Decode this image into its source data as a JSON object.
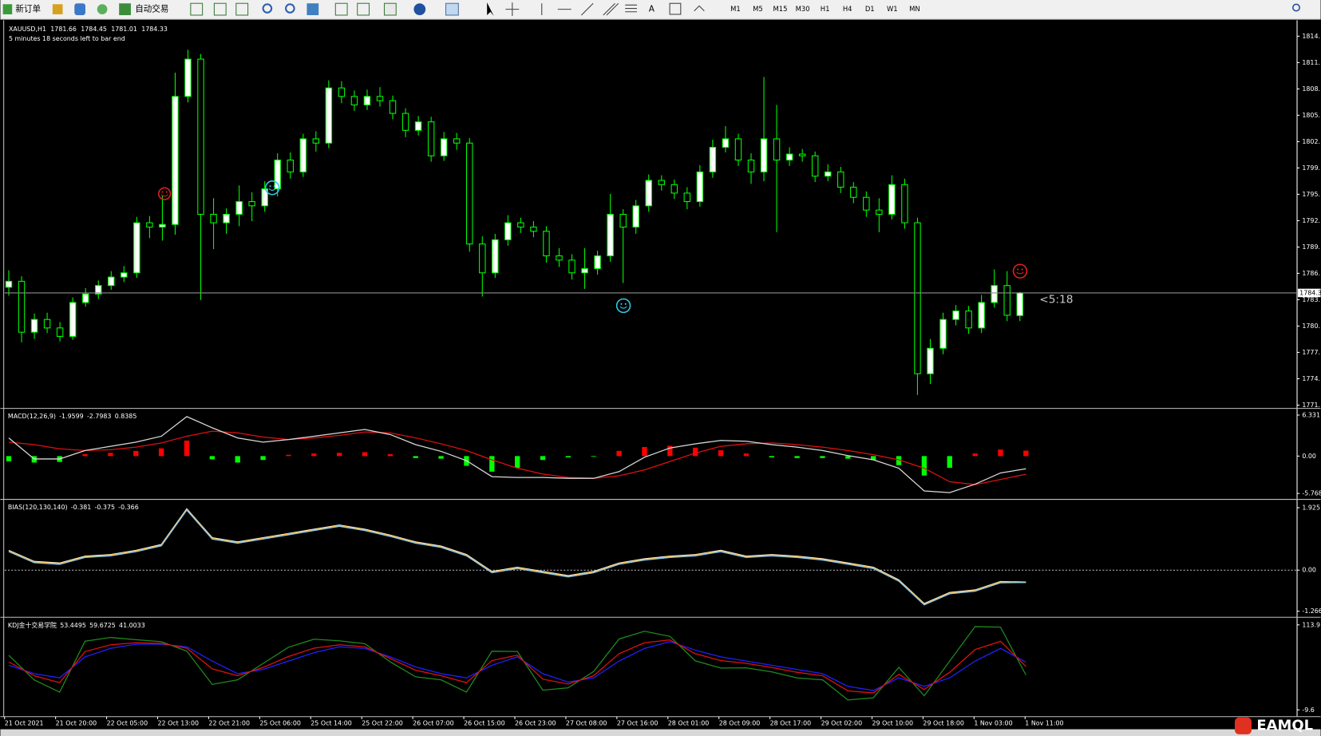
{
  "toolbar": {
    "buttons": [
      "新订单",
      "自动交易"
    ],
    "periods": [
      "M1",
      "M5",
      "M15",
      "M30",
      "H1",
      "H4",
      "D1",
      "W1",
      "MN"
    ]
  },
  "main": {
    "type": "candlestick",
    "symbol": "XAUUSD,H1",
    "countdown": "5 minutes 18 seconds left to bar end",
    "timer_label": "<5:18",
    "color": "#00ff00",
    "up_fill": "#ffffff",
    "down_fill": "#000000",
    "price_line_color": "#8c8c8c",
    "ylim": [
      1770.81,
      1816.19
    ],
    "yticks": [
      {
        "value": 1814.6,
        "label": "1814."
      },
      {
        "value": 1811.49,
        "label": "1811."
      },
      {
        "value": 1808.39,
        "label": "1808."
      },
      {
        "value": 1805.28,
        "label": "1805."
      },
      {
        "value": 1802.17,
        "label": "1802."
      },
      {
        "value": 1799.07,
        "label": "1799."
      },
      {
        "value": 1795.96,
        "label": "1795."
      },
      {
        "value": 1792.85,
        "label": "1792."
      },
      {
        "value": 1789.74,
        "label": "1789."
      },
      {
        "value": 1786.64,
        "label": "1786."
      },
      {
        "value": 1783.53,
        "label": "1783."
      },
      {
        "value": 1780.42,
        "label": "1780."
      },
      {
        "value": 1777.32,
        "label": "1777."
      },
      {
        "value": 1774.21,
        "label": "1774."
      },
      {
        "value": 1771.1,
        "label": "1771."
      }
    ],
    "candles": [
      [
        1785.0,
        1787.0,
        1784.0,
        1785.7
      ],
      [
        1785.7,
        1786.3,
        1778.5,
        1779.7
      ],
      [
        1779.7,
        1781.9,
        1778.9,
        1781.2
      ],
      [
        1781.2,
        1782.0,
        1779.6,
        1780.2
      ],
      [
        1780.2,
        1780.9,
        1778.6,
        1779.2
      ],
      [
        1779.2,
        1783.8,
        1778.8,
        1783.2
      ],
      [
        1783.2,
        1784.9,
        1782.7,
        1784.2
      ],
      [
        1784.2,
        1785.8,
        1783.6,
        1785.2
      ],
      [
        1785.2,
        1786.9,
        1784.7,
        1786.2
      ],
      [
        1786.2,
        1787.5,
        1785.6,
        1786.7
      ],
      [
        1786.7,
        1793.3,
        1786.1,
        1792.6
      ],
      [
        1792.6,
        1793.4,
        1790.8,
        1792.1
      ],
      [
        1792.1,
        1795.8,
        1790.5,
        1792.4
      ],
      [
        1792.4,
        1810.3,
        1791.2,
        1807.5
      ],
      [
        1807.5,
        1813.0,
        1806.8,
        1811.9
      ],
      [
        1811.9,
        1812.5,
        1783.5,
        1793.6
      ],
      [
        1793.6,
        1795.5,
        1789.5,
        1792.6
      ],
      [
        1792.6,
        1794.3,
        1791.3,
        1793.6
      ],
      [
        1793.6,
        1797.0,
        1792.2,
        1795.1
      ],
      [
        1795.1,
        1796.2,
        1792.8,
        1794.6
      ],
      [
        1794.6,
        1797.5,
        1793.9,
        1796.6
      ],
      [
        1796.6,
        1800.8,
        1795.7,
        1800.0
      ],
      [
        1800.0,
        1800.9,
        1797.8,
        1798.6
      ],
      [
        1798.6,
        1803.1,
        1798.0,
        1802.5
      ],
      [
        1802.5,
        1803.4,
        1801.0,
        1802.0
      ],
      [
        1802.0,
        1809.4,
        1801.4,
        1808.5
      ],
      [
        1808.5,
        1809.3,
        1806.7,
        1807.5
      ],
      [
        1807.5,
        1808.2,
        1805.8,
        1806.5
      ],
      [
        1806.5,
        1808.3,
        1805.9,
        1807.5
      ],
      [
        1807.5,
        1808.6,
        1806.3,
        1807.0
      ],
      [
        1807.0,
        1807.6,
        1804.8,
        1805.5
      ],
      [
        1805.5,
        1806.1,
        1802.7,
        1803.5
      ],
      [
        1803.5,
        1805.2,
        1802.9,
        1804.5
      ],
      [
        1804.5,
        1805.1,
        1799.8,
        1800.5
      ],
      [
        1800.5,
        1803.3,
        1799.9,
        1802.5
      ],
      [
        1802.5,
        1803.2,
        1801.2,
        1802.0
      ],
      [
        1802.0,
        1802.6,
        1789.2,
        1790.1
      ],
      [
        1790.1,
        1791.0,
        1783.9,
        1786.7
      ],
      [
        1786.7,
        1791.3,
        1786.1,
        1790.6
      ],
      [
        1790.6,
        1793.5,
        1789.9,
        1792.6
      ],
      [
        1792.6,
        1793.2,
        1791.4,
        1792.1
      ],
      [
        1792.1,
        1792.8,
        1790.9,
        1791.6
      ],
      [
        1791.6,
        1792.2,
        1787.9,
        1788.7
      ],
      [
        1788.7,
        1789.6,
        1787.4,
        1788.2
      ],
      [
        1788.2,
        1788.9,
        1785.9,
        1786.7
      ],
      [
        1786.7,
        1789.6,
        1784.8,
        1787.2
      ],
      [
        1787.2,
        1789.3,
        1786.5,
        1788.7
      ],
      [
        1788.7,
        1796.0,
        1788.0,
        1793.6
      ],
      [
        1793.6,
        1794.2,
        1785.5,
        1792.1
      ],
      [
        1792.1,
        1795.3,
        1791.3,
        1794.6
      ],
      [
        1794.6,
        1798.3,
        1793.9,
        1797.6
      ],
      [
        1797.6,
        1798.2,
        1796.4,
        1797.1
      ],
      [
        1797.1,
        1797.7,
        1795.4,
        1796.1
      ],
      [
        1796.1,
        1796.8,
        1794.2,
        1795.1
      ],
      [
        1795.1,
        1799.4,
        1794.5,
        1798.6
      ],
      [
        1798.6,
        1802.4,
        1797.9,
        1801.5
      ],
      [
        1801.5,
        1804.0,
        1800.9,
        1802.5
      ],
      [
        1802.5,
        1803.1,
        1799.3,
        1800.0
      ],
      [
        1800.0,
        1800.8,
        1797.2,
        1798.6
      ],
      [
        1798.6,
        1809.8,
        1797.5,
        1802.5
      ],
      [
        1802.5,
        1806.5,
        1791.5,
        1800.0
      ],
      [
        1800.0,
        1801.5,
        1799.3,
        1800.7
      ],
      [
        1800.7,
        1801.3,
        1799.8,
        1800.5
      ],
      [
        1800.5,
        1801.0,
        1797.4,
        1798.1
      ],
      [
        1798.1,
        1799.5,
        1797.5,
        1798.6
      ],
      [
        1798.6,
        1799.2,
        1796.1,
        1796.8
      ],
      [
        1796.8,
        1797.4,
        1794.9,
        1795.6
      ],
      [
        1795.6,
        1796.3,
        1793.3,
        1794.1
      ],
      [
        1794.1,
        1795.5,
        1791.5,
        1793.6
      ],
      [
        1793.6,
        1798.2,
        1793.0,
        1797.1
      ],
      [
        1797.1,
        1797.8,
        1791.9,
        1792.6
      ],
      [
        1792.6,
        1793.2,
        1772.3,
        1774.8
      ],
      [
        1774.8,
        1778.9,
        1773.6,
        1777.8
      ],
      [
        1777.8,
        1782.0,
        1777.1,
        1781.2
      ],
      [
        1781.2,
        1782.9,
        1780.5,
        1782.2
      ],
      [
        1782.2,
        1782.8,
        1779.5,
        1780.2
      ],
      [
        1780.2,
        1784.1,
        1779.6,
        1783.2
      ],
      [
        1783.2,
        1787.1,
        1782.6,
        1785.2
      ],
      [
        1785.2,
        1786.9,
        1781.0,
        1781.7
      ],
      [
        1781.66,
        1784.45,
        1781.01,
        1784.33
      ]
    ]
  },
  "macd": {
    "type": "line",
    "title": "MACD(12,26,9)",
    "ylim": [
      -6.55,
      7.1
    ],
    "yticks": [
      6.331,
      {
        "value": 0,
        "label": "0.00"
      },
      -5.768
    ],
    "histogram": {
      "pos_color": "#ff0000",
      "neg_color": "#00ff00",
      "values": [
        -0.8,
        -1.0,
        -0.9,
        0.3,
        0.5,
        0.8,
        1.2,
        2.4,
        -0.5,
        -1.0,
        -0.6,
        0.2,
        0.4,
        0.5,
        0.6,
        0.3,
        -0.3,
        -0.4,
        -1.5,
        -2.4,
        -1.8,
        -0.6,
        -0.2,
        -0.1,
        0.8,
        1.4,
        1.6,
        1.3,
        0.9,
        0.4,
        -0.2,
        -0.3,
        -0.3,
        -0.4,
        -0.6,
        -1.4,
        -3.0,
        -1.8,
        0.4,
        1.0,
        0.8385
      ]
    },
    "series": [
      {
        "color": "#d9d9d9",
        "values": [
          2.8,
          -0.44,
          -0.44,
          0.86,
          1.51,
          2.16,
          3.07,
          6.1,
          4.37,
          2.8,
          2.16,
          2.55,
          3.07,
          3.59,
          4.11,
          3.33,
          1.77,
          0.73,
          -0.7,
          -3.17,
          -3.3,
          -3.3,
          -3.43,
          -3.43,
          -2.39,
          -0.18,
          1.25,
          1.9,
          2.42,
          2.29,
          1.77,
          1.38,
          0.86,
          0.08,
          -0.57,
          -1.87,
          -5.38,
          -5.64,
          -4.34,
          -2.6,
          -1.9599
        ]
      },
      {
        "color": "#e01010",
        "values": [
          2.16,
          1.77,
          1.12,
          0.86,
          0.99,
          1.38,
          2.03,
          3.07,
          3.85,
          3.59,
          2.94,
          2.55,
          2.81,
          3.2,
          3.72,
          3.59,
          2.81,
          1.9,
          0.86,
          -0.57,
          -1.87,
          -2.78,
          -3.3,
          -3.43,
          -3.04,
          -2.13,
          -0.83,
          0.47,
          1.51,
          1.9,
          2.03,
          1.77,
          1.38,
          0.86,
          0.21,
          -0.57,
          -1.87,
          -3.95,
          -4.4,
          -3.6,
          -2.7983
        ]
      }
    ]
  },
  "bias": {
    "type": "line",
    "title": "BIAS(120,130,140)",
    "ylim": [
      -1.4,
      2.13
    ],
    "yticks": [
      1.925,
      {
        "value": 0,
        "label": "0.00"
      },
      -1.266
    ],
    "level": 0,
    "series": [
      {
        "color": "#87cefa",
        "values": [
          0.57,
          0.23,
          0.18,
          0.39,
          0.44,
          0.57,
          0.75,
          1.85,
          0.96,
          0.83,
          0.96,
          1.09,
          1.22,
          1.35,
          1.22,
          1.04,
          0.83,
          0.7,
          0.44,
          -0.08,
          0.05,
          -0.08,
          -0.21,
          -0.08,
          0.18,
          0.31,
          0.39,
          0.44,
          0.57,
          0.39,
          0.44,
          0.39,
          0.31,
          0.18,
          0.05,
          -0.34,
          -1.07,
          -0.73,
          -0.65,
          -0.39,
          -0.381
        ]
      },
      {
        "color": "#ffa500",
        "values": [
          0.59,
          0.25,
          0.2,
          0.41,
          0.46,
          0.59,
          0.77,
          1.87,
          0.98,
          0.85,
          0.98,
          1.11,
          1.24,
          1.37,
          1.24,
          1.06,
          0.85,
          0.72,
          0.46,
          -0.06,
          0.07,
          -0.06,
          -0.19,
          -0.06,
          0.2,
          0.33,
          0.41,
          0.46,
          0.59,
          0.41,
          0.46,
          0.41,
          0.33,
          0.2,
          0.07,
          -0.32,
          -1.05,
          -0.71,
          -0.63,
          -0.37,
          -0.375
        ]
      },
      {
        "color": "#ffffff",
        "values": [
          0.61,
          0.27,
          0.22,
          0.43,
          0.48,
          0.61,
          0.79,
          1.89,
          1.0,
          0.87,
          1.0,
          1.13,
          1.26,
          1.39,
          1.26,
          1.08,
          0.87,
          0.74,
          0.48,
          -0.04,
          0.09,
          -0.04,
          -0.17,
          -0.04,
          0.22,
          0.35,
          0.43,
          0.48,
          0.61,
          0.43,
          0.48,
          0.43,
          0.35,
          0.22,
          0.09,
          -0.3,
          -1.03,
          -0.69,
          -0.61,
          -0.35,
          -0.366
        ]
      }
    ]
  },
  "kdj": {
    "type": "line",
    "title": "KDJ金十交易学院",
    "ylim": [
      -18.2,
      122.5
    ],
    "yticks": [
      113.9,
      -9.6
    ],
    "series": [
      {
        "color": "#e01010",
        "values": [
          60,
          40,
          30,
          75,
          85,
          88,
          87,
          80,
          50,
          40,
          52,
          68,
          80,
          85,
          82,
          65,
          48,
          40,
          30,
          62,
          70,
          35,
          28,
          40,
          72,
          88,
          92,
          72,
          62,
          58,
          52,
          45,
          40,
          18,
          15,
          42,
          20,
          45,
          78,
          90,
          53.4495
        ]
      },
      {
        "color": "#2020ff",
        "values": [
          55.2,
          43.0,
          36.9,
          67.4,
          79.7,
          85.8,
          85.8,
          82.1,
          61.3,
          43.0,
          49.1,
          61.3,
          73.5,
          82.1,
          79.7,
          67.4,
          52.8,
          43.0,
          36.9,
          55.2,
          67.4,
          43.0,
          30.8,
          36.9,
          61.3,
          79.7,
          89.4,
          77.2,
          67.4,
          61.3,
          55.2,
          49.1,
          43.0,
          24.6,
          18.5,
          36.9,
          24.6,
          36.9,
          61.3,
          79.7,
          59.6725
        ]
      },
      {
        "color": "#1f8a1f",
        "values": [
          69.6,
          34.0,
          16.2,
          90.2,
          95.6,
          92.4,
          89.4,
          75.8,
          27.4,
          34.0,
          57.8,
          81.4,
          93.0,
          90.8,
          86.6,
          60.2,
          38.4,
          34.0,
          16.2,
          75.6,
          75.2,
          19.0,
          22.4,
          46.2,
          93.4,
          104.6,
          97.2,
          61.6,
          51.2,
          51.4,
          45.6,
          36.8,
          34.0,
          4.8,
          8.0,
          52.2,
          10.8,
          61.2,
          111.4,
          110.6,
          41.0033
        ]
      }
    ]
  },
  "time_axis": {
    "labels": [
      "21 Oct 2021",
      "21 Oct 20:00",
      "22 Oct 05:00",
      "22 Oct 13:00",
      "22 Oct 21:00",
      "25 Oct 06:00",
      "25 Oct 14:00",
      "25 Oct 22:00",
      "26 Oct 07:00",
      "26 Oct 15:00",
      "26 Oct 23:00",
      "27 Oct 08:00",
      "27 Oct 16:00",
      "28 Oct 01:00",
      "28 Oct 09:00",
      "28 Oct 17:00",
      "29 Oct 02:00",
      "29 Oct 10:00",
      "29 Oct 18:00",
      "1 Nov 03:00",
      "1 Nov 11:00"
    ]
  },
  "watermark": "EAMQL"
}
